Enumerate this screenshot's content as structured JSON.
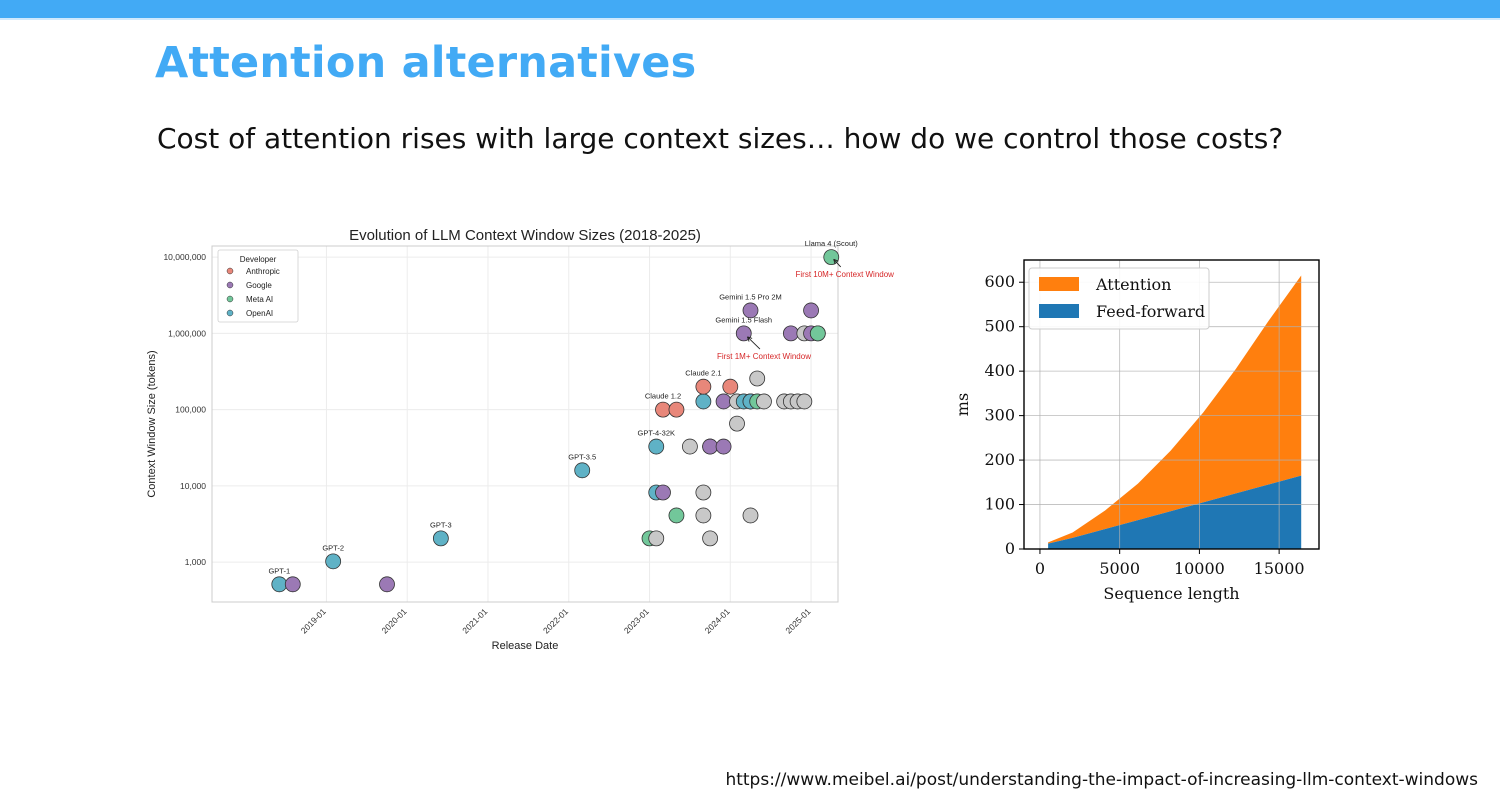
{
  "slide": {
    "title": "Attention alternatives",
    "subtitle": "Cost of attention rises with large context sizes… how do we control those costs?",
    "source_url": "https://www.meibel.ai/post/understanding-the-impact-of-increasing-llm-context-windows",
    "accent_color": "#42aaf5"
  },
  "chart_data": [
    {
      "type": "scatter",
      "title": "Evolution of LLM Context Window Sizes (2018-2025)",
      "xlabel": "Release Date",
      "ylabel": "Context Window Size (tokens)",
      "y_scale": "log",
      "xlim": [
        "2017-08",
        "2025-05"
      ],
      "ylim": [
        300,
        14000000
      ],
      "x_ticks": [
        "2019-01",
        "2020-01",
        "2021-01",
        "2022-01",
        "2023-01",
        "2024-01",
        "2025-01"
      ],
      "y_ticks": [
        {
          "value": 1000,
          "label": "1,000"
        },
        {
          "value": 10000,
          "label": "10,000"
        },
        {
          "value": 100000,
          "label": "100,000"
        },
        {
          "value": 1000000,
          "label": "1,000,000"
        },
        {
          "value": 10000000,
          "label": "10,000,000"
        }
      ],
      "grid": true,
      "legend": {
        "title": "Developer",
        "placement": "top-left",
        "entries": [
          {
            "name": "Anthropic",
            "color": "#e8877a"
          },
          {
            "name": "Google",
            "color": "#9b79b5"
          },
          {
            "name": "Meta AI",
            "color": "#72c79a"
          },
          {
            "name": "OpenAI",
            "color": "#5fb2c6"
          }
        ]
      },
      "other_color": "#c8c8c8",
      "points": [
        {
          "x": "2018-06",
          "y": 512,
          "dev": "OpenAI",
          "label": "GPT-1"
        },
        {
          "x": "2018-08",
          "y": 512,
          "dev": "Google"
        },
        {
          "x": "2019-02",
          "y": 1024,
          "dev": "OpenAI",
          "label": "GPT-2"
        },
        {
          "x": "2019-10",
          "y": 512,
          "dev": "Google"
        },
        {
          "x": "2020-06",
          "y": 2048,
          "dev": "OpenAI",
          "label": "GPT-3"
        },
        {
          "x": "2022-03",
          "y": 16000,
          "dev": "OpenAI",
          "label": "GPT-3.5"
        },
        {
          "x": "2023-01",
          "y": 2048,
          "dev": "Meta AI"
        },
        {
          "x": "2023-02",
          "y": 2048,
          "dev": "Other"
        },
        {
          "x": "2023-02",
          "y": 8192,
          "dev": "OpenAI"
        },
        {
          "x": "2023-02",
          "y": 32768,
          "dev": "OpenAI",
          "label": "GPT-4-32K"
        },
        {
          "x": "2023-03",
          "y": 8192,
          "dev": "Google"
        },
        {
          "x": "2023-03",
          "y": 100000,
          "dev": "Anthropic",
          "label": "Claude 1.2"
        },
        {
          "x": "2023-05",
          "y": 100000,
          "dev": "Anthropic"
        },
        {
          "x": "2023-05",
          "y": 4096,
          "dev": "Meta AI"
        },
        {
          "x": "2023-07",
          "y": 32768,
          "dev": "Other"
        },
        {
          "x": "2023-09",
          "y": 8192,
          "dev": "Other"
        },
        {
          "x": "2023-09",
          "y": 4096,
          "dev": "Other"
        },
        {
          "x": "2023-09",
          "y": 128000,
          "dev": "OpenAI"
        },
        {
          "x": "2023-09",
          "y": 200000,
          "dev": "Anthropic",
          "label": "Claude 2.1"
        },
        {
          "x": "2023-10",
          "y": 2048,
          "dev": "Other"
        },
        {
          "x": "2023-10",
          "y": 32768,
          "dev": "Other"
        },
        {
          "x": "2023-10",
          "y": 32768,
          "dev": "Google"
        },
        {
          "x": "2023-12",
          "y": 32768,
          "dev": "Google"
        },
        {
          "x": "2023-12",
          "y": 128000,
          "dev": "Google"
        },
        {
          "x": "2024-01",
          "y": 200000,
          "dev": "Anthropic"
        },
        {
          "x": "2024-02",
          "y": 65536,
          "dev": "Other"
        },
        {
          "x": "2024-02",
          "y": 128000,
          "dev": "Other"
        },
        {
          "x": "2024-03",
          "y": 128000,
          "dev": "OpenAI"
        },
        {
          "x": "2024-03",
          "y": 1000000,
          "dev": "Google",
          "label": "Gemini 1.5 Flash"
        },
        {
          "x": "2024-04",
          "y": 128000,
          "dev": "Other"
        },
        {
          "x": "2024-04",
          "y": 128000,
          "dev": "OpenAI"
        },
        {
          "x": "2024-04",
          "y": 2000000,
          "dev": "Google",
          "label": "Gemini 1.5 Pro 2M"
        },
        {
          "x": "2024-04",
          "y": 4096,
          "dev": "Other"
        },
        {
          "x": "2024-05",
          "y": 128000,
          "dev": "Meta AI"
        },
        {
          "x": "2024-05",
          "y": 256000,
          "dev": "Other"
        },
        {
          "x": "2024-06",
          "y": 128000,
          "dev": "Other"
        },
        {
          "x": "2024-09",
          "y": 128000,
          "dev": "Other"
        },
        {
          "x": "2024-10",
          "y": 1000000,
          "dev": "Google"
        },
        {
          "x": "2024-10",
          "y": 128000,
          "dev": "Other"
        },
        {
          "x": "2024-11",
          "y": 128000,
          "dev": "Other"
        },
        {
          "x": "2024-12",
          "y": 128000,
          "dev": "Other"
        },
        {
          "x": "2024-12",
          "y": 1000000,
          "dev": "Other"
        },
        {
          "x": "2025-01",
          "y": 2000000,
          "dev": "Google"
        },
        {
          "x": "2025-01",
          "y": 1000000,
          "dev": "Google"
        },
        {
          "x": "2025-02",
          "y": 1000000,
          "dev": "Other"
        },
        {
          "x": "2025-02",
          "y": 1000000,
          "dev": "Meta AI"
        },
        {
          "x": "2025-04",
          "y": 10000000,
          "dev": "Meta AI",
          "label": "Llama 4 (Scout)"
        }
      ],
      "annotations": [
        {
          "text": "First 10M+ Context Window",
          "color": "#d62728",
          "text_x": "2025-06",
          "text_y": 5500000,
          "arrow_to_x": "2025-04",
          "arrow_to_y": 10000000
        },
        {
          "text": "First 1M+ Context Window",
          "color": "#d62728",
          "text_x": "2024-06",
          "text_y": 460000,
          "arrow_to_x": "2024-03",
          "arrow_to_y": 1000000
        }
      ]
    },
    {
      "type": "area",
      "stacked": true,
      "xlabel": "Sequence length",
      "ylabel": "ms",
      "xlim": [
        -1000,
        17500
      ],
      "ylim": [
        0,
        650
      ],
      "x_ticks": [
        0,
        5000,
        10000,
        15000
      ],
      "y_ticks": [
        0,
        100,
        200,
        300,
        400,
        500,
        600
      ],
      "grid": true,
      "legend": {
        "placement": "top-left"
      },
      "x": [
        512,
        2048,
        4096,
        6144,
        8192,
        10240,
        12288,
        14336,
        16384
      ],
      "series": [
        {
          "name": "Feed-forward",
          "color": "#1f77b4",
          "values": [
            12,
            25,
            45,
            65,
            85,
            105,
            125,
            145,
            165
          ]
        },
        {
          "name": "Attention",
          "color": "#ff7f0e",
          "values": [
            3,
            12,
            42,
            82,
            136,
            202,
            280,
            368,
            450
          ]
        }
      ]
    }
  ]
}
